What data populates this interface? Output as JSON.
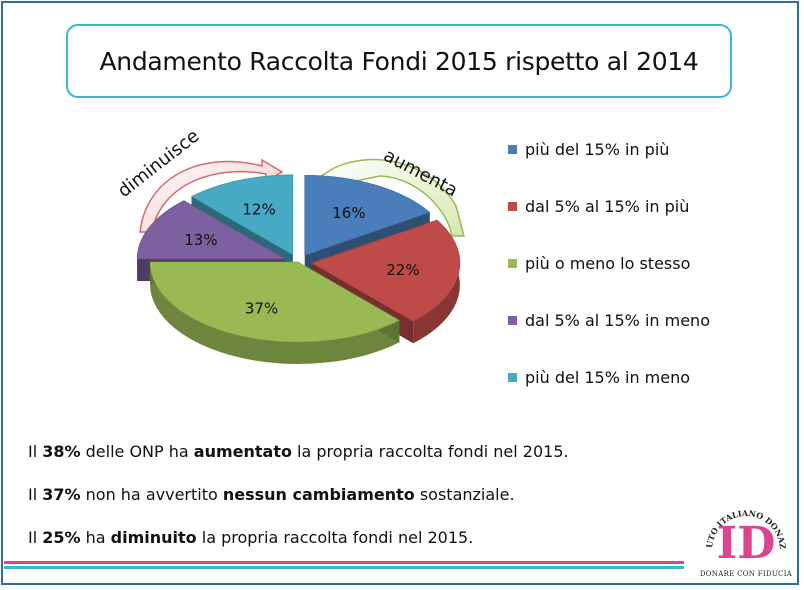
{
  "title": "Andamento Raccolta Fondi 2015 rispetto al 2014",
  "chart_data": {
    "type": "pie",
    "style": "3d-exploded",
    "categories": [
      "più del 15% in più",
      "dal 5% al 15% in più",
      "più o meno lo stesso",
      "dal 5% al 15% in meno",
      "più del 15% in meno"
    ],
    "values": [
      16,
      22,
      37,
      13,
      12
    ],
    "labels": [
      "16%",
      "22%",
      "37%",
      "13%",
      "12%"
    ],
    "colors": [
      "#4a7ebb",
      "#be4b48",
      "#98b954",
      "#7d60a0",
      "#46aac5"
    ],
    "legend_position": "right",
    "annotations": {
      "increase": "aumenta",
      "decrease": "diminuisce"
    }
  },
  "findings": [
    {
      "pre": "Il ",
      "b1": "38%",
      "mid": " delle ONP ha ",
      "b2": "aumentato",
      "post": " la propria raccolta fondi nel 2015."
    },
    {
      "pre": "Il ",
      "b1": "37%",
      "mid": " non ha avvertito ",
      "b2": "nessun cambiamento",
      "post": " sostanziale."
    },
    {
      "pre": "Il ",
      "b1": "25%",
      "mid": " ha ",
      "b2": "diminuito",
      "post": " la propria raccolta fondi nel 2015."
    }
  ],
  "logo": {
    "letters": "ID",
    "arc_text": "ISTITUTO ITALIANO DONAZIONE",
    "caption": "DONARE CON FIDUCIA",
    "accent": "#d9468f"
  }
}
